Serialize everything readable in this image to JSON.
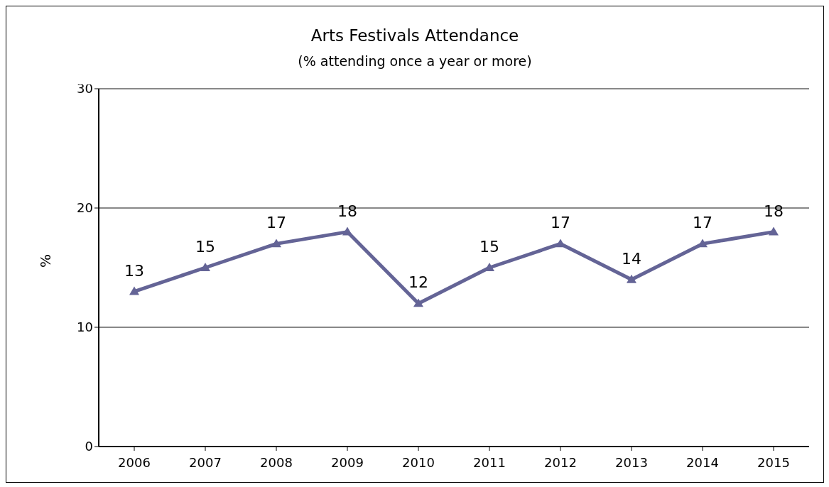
{
  "chart_data": {
    "type": "line",
    "title": "Arts Festivals Attendance",
    "subtitle": "(% attending once a year or more)",
    "ylabel": "%",
    "categories": [
      "2006",
      "2007",
      "2008",
      "2009",
      "2010",
      "2011",
      "2012",
      "2013",
      "2014",
      "2015"
    ],
    "series": [
      {
        "color": "#646496",
        "values": [
          13,
          15,
          17,
          18,
          12,
          15,
          17,
          14,
          17,
          18
        ]
      }
    ],
    "ylim": [
      0,
      30
    ],
    "yticks": [
      0,
      10,
      20,
      30
    ],
    "grid": "y",
    "marker": "triangle",
    "data_labels": true,
    "legend": false
  }
}
